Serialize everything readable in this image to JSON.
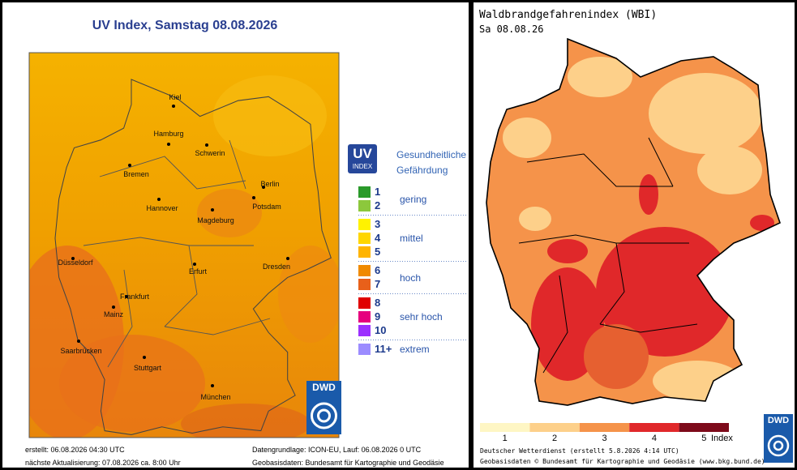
{
  "uv_map": {
    "title": "UV Index, Samstag 08.08.2026",
    "cities": [
      "Kiel",
      "Hamburg",
      "Schwerin",
      "Bremen",
      "Berlin",
      "Potsdam",
      "Hannover",
      "Magdeburg",
      "Düsseldorf",
      "Erfurt",
      "Dresden",
      "Frankfurt",
      "Mainz",
      "Saarbrücken",
      "Stuttgart",
      "München"
    ],
    "legend": {
      "badge": "UV",
      "badge_sub": "INDEX",
      "heading": [
        "Gesundheitliche",
        "Gefährdung"
      ],
      "groups": [
        {
          "levels": [
            "1",
            "2"
          ],
          "colors": [
            "#2a9a2a",
            "#8cc83c"
          ],
          "label": "gering"
        },
        {
          "levels": [
            "3",
            "4",
            "5"
          ],
          "colors": [
            "#fff200",
            "#ffd600",
            "#ffb400"
          ],
          "label": "mittel"
        },
        {
          "levels": [
            "6",
            "7"
          ],
          "colors": [
            "#f08a00",
            "#e8601a"
          ],
          "label": "hoch"
        },
        {
          "levels": [
            "8",
            "9",
            "10"
          ],
          "colors": [
            "#e00000",
            "#e6007e",
            "#9b30ff"
          ],
          "label": "sehr hoch"
        },
        {
          "levels": [
            "11+"
          ],
          "colors": [
            "#9c8cff"
          ],
          "label": "extrem"
        }
      ]
    },
    "logo": "DWD",
    "footer": [
      "erstellt: 06.08.2026 04:30 UTC",
      "nächste Aktualisierung: 07.08.2026 ca. 8:00 Uhr",
      "Datengrundlage: ICON-EU, Lauf: 06.08.2026 0 UTC",
      "Geobasisdaten: Bundesamt für Kartographie und Geodäsie"
    ]
  },
  "wbi_map": {
    "title": "Waldbrandgefahrenindex (WBI)",
    "date": "Sa 08.08.26",
    "scale": {
      "labels": [
        "1",
        "2",
        "3",
        "4",
        "5"
      ],
      "colors": [
        "#fef6c4",
        "#fdd08a",
        "#f5934a",
        "#e0282a",
        "#7d0a1a"
      ],
      "unit": "Index"
    },
    "logo": "DWD",
    "footer": [
      "Deutscher Wetterdienst (erstellt 5.8.2026 4:14 UTC)",
      "Geobasisdaten © Bundesamt für Kartographie und Geodäsie (www.bkg.bund.de)"
    ]
  }
}
